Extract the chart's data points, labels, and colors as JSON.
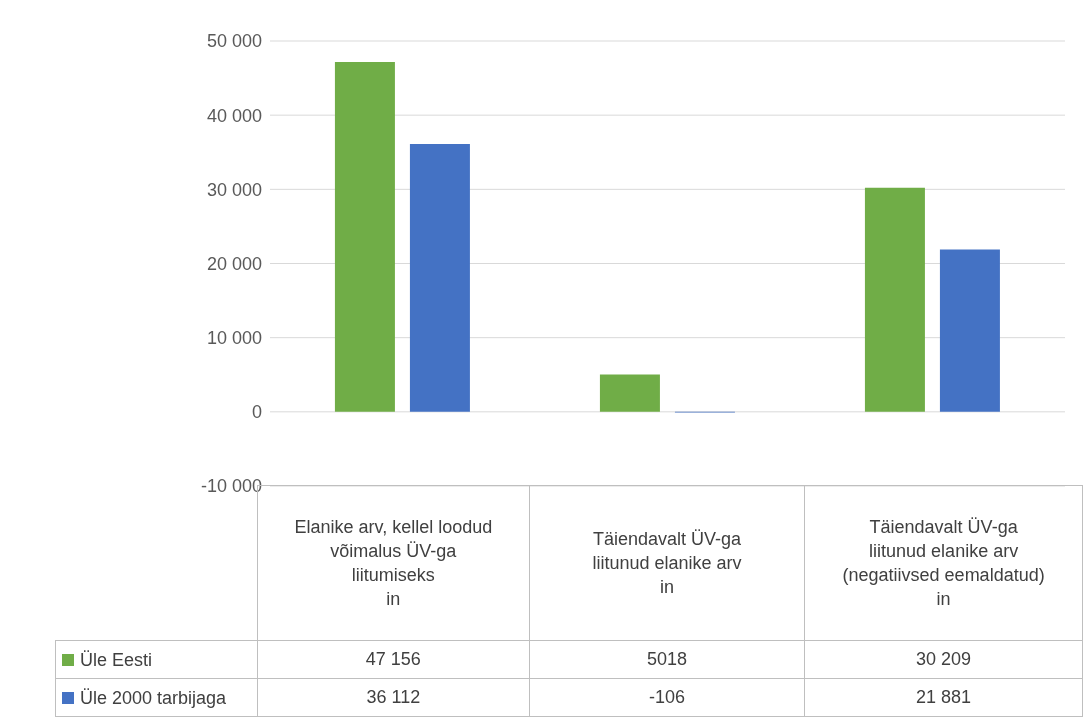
{
  "chart_data": {
    "type": "bar",
    "categories": [
      "Elanike arv, kellel loodud võimalus ÜV-ga liitumiseks\nin",
      "Täiendavalt ÜV-ga liitunud elanike arv\nin",
      "Täiendavalt ÜV-ga liitunud elanike arv (negatiivsed eemaldatud)\nin"
    ],
    "series": [
      {
        "name": "Üle Eesti",
        "color": "#70ad47",
        "values": [
          47156,
          5018,
          30209
        ],
        "value_labels": [
          "47 156",
          "5018",
          "30 209"
        ]
      },
      {
        "name": "Üle 2000 tarbijaga",
        "color": "#4472c4",
        "values": [
          36112,
          -106,
          21881
        ],
        "value_labels": [
          "36 112",
          "-106",
          "21 881"
        ]
      }
    ],
    "ylim": [
      -10000,
      50000
    ],
    "yticks": [
      {
        "value": -10000,
        "label": "-10 000"
      },
      {
        "value": 0,
        "label": "0"
      },
      {
        "value": 10000,
        "label": "10 000"
      },
      {
        "value": 20000,
        "label": "20 000"
      },
      {
        "value": 30000,
        "label": "30 000"
      },
      {
        "value": 40000,
        "label": "40 000"
      },
      {
        "value": 50000,
        "label": "50 000"
      }
    ],
    "grid": "y",
    "legend": "bottom"
  }
}
